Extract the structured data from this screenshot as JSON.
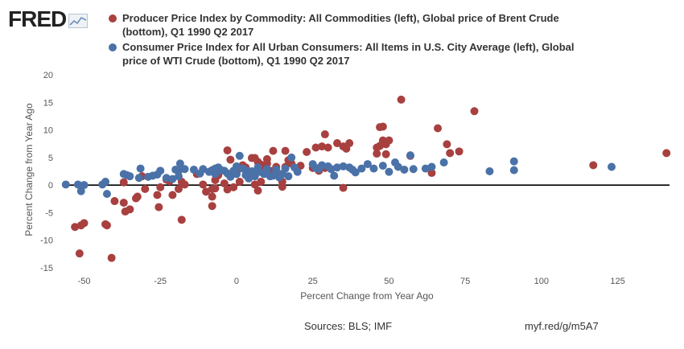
{
  "header": {
    "logo_text": "FRED",
    "logo_icon": "line-chart-icon"
  },
  "footer": {
    "sources": "Sources: BLS; IMF",
    "short_url": "myf.red/g/m5A7"
  },
  "chart_data": {
    "type": "scatter",
    "xlabel": "Percent Change from Year Ago",
    "ylabel": "Percent Change from Year Ago",
    "xlim": [
      -57,
      142
    ],
    "ylim": [
      -15,
      20
    ],
    "xticks": [
      -50,
      -25,
      0,
      25,
      50,
      75,
      100,
      125
    ],
    "yticks": [
      -15,
      -10,
      -5,
      0,
      5,
      10,
      15,
      20
    ],
    "grid": false,
    "zero_line": true,
    "legend_position": "top",
    "series": [
      {
        "name": "Producer Price Index by Commodity: All Commodities (left), Global price of Brent Crude (bottom), Q1 1990 Q2 2017",
        "color": "#a84040",
        "points": [
          [
            -53,
            -7.6
          ],
          [
            -51.5,
            -12.4
          ],
          [
            -51,
            -7.3
          ],
          [
            -50,
            -6.9
          ],
          [
            -43,
            -7.1
          ],
          [
            -42.5,
            -7.3
          ],
          [
            -41,
            -13.2
          ],
          [
            -40,
            -2.9
          ],
          [
            -37,
            0.5
          ],
          [
            -37,
            -3.2
          ],
          [
            -36.5,
            -4.8
          ],
          [
            -35,
            -4.4
          ],
          [
            -33,
            -2.4
          ],
          [
            -32.5,
            -2.1
          ],
          [
            -31,
            1.6
          ],
          [
            -30,
            -0.7
          ],
          [
            -26,
            -1.8
          ],
          [
            -25.5,
            -4.0
          ],
          [
            -25,
            -0.4
          ],
          [
            -23,
            1.0
          ],
          [
            -22,
            0.7
          ],
          [
            -21,
            -1.8
          ],
          [
            -19,
            -0.7
          ],
          [
            -18,
            -6.3
          ],
          [
            -18,
            0.6
          ],
          [
            -17,
            0.1
          ],
          [
            -13,
            2.0
          ],
          [
            -11,
            0.1
          ],
          [
            -10,
            -1.2
          ],
          [
            -8,
            -0.7
          ],
          [
            -8,
            -2.1
          ],
          [
            -8,
            -3.8
          ],
          [
            -7,
            0.9
          ],
          [
            -7,
            -0.6
          ],
          [
            -6,
            1.8
          ],
          [
            -4,
            0.3
          ],
          [
            -3,
            6.3
          ],
          [
            -3,
            -0.8
          ],
          [
            -2,
            4.6
          ],
          [
            -1,
            -0.4
          ],
          [
            0,
            2.3
          ],
          [
            1,
            0.6
          ],
          [
            2,
            3.6
          ],
          [
            3,
            3.2
          ],
          [
            4,
            1.7
          ],
          [
            5,
            4.9
          ],
          [
            6,
            4.9
          ],
          [
            6,
            0.1
          ],
          [
            7,
            -1.0
          ],
          [
            7,
            4.2
          ],
          [
            8,
            0.6
          ],
          [
            8,
            3.7
          ],
          [
            9,
            2.6
          ],
          [
            10,
            4.7
          ],
          [
            10,
            3.9
          ],
          [
            11,
            2.6
          ],
          [
            12,
            6.2
          ],
          [
            12,
            1.8
          ],
          [
            13,
            3.3
          ],
          [
            14,
            2.0
          ],
          [
            15,
            0.6
          ],
          [
            15,
            -0.3
          ],
          [
            16,
            6.2
          ],
          [
            16,
            3.3
          ],
          [
            17,
            4.5
          ],
          [
            18,
            3.9
          ],
          [
            21,
            3.5
          ],
          [
            23,
            6.0
          ],
          [
            25,
            3.1
          ],
          [
            26,
            6.8
          ],
          [
            27,
            2.6
          ],
          [
            28,
            7.0
          ],
          [
            29,
            9.2
          ],
          [
            29,
            3.1
          ],
          [
            30,
            6.8
          ],
          [
            33,
            7.6
          ],
          [
            35,
            -0.5
          ],
          [
            35,
            7.0
          ],
          [
            36,
            6.6
          ],
          [
            37,
            7.6
          ],
          [
            46,
            6.8
          ],
          [
            46,
            5.7
          ],
          [
            47,
            10.5
          ],
          [
            47,
            7.1
          ],
          [
            48,
            10.6
          ],
          [
            48,
            8.1
          ],
          [
            49,
            5.6
          ],
          [
            49,
            7.4
          ],
          [
            50,
            8.1
          ],
          [
            54,
            15.5
          ],
          [
            57,
            5.3
          ],
          [
            64,
            2.2
          ],
          [
            66,
            10.3
          ],
          [
            69,
            7.4
          ],
          [
            70,
            5.8
          ],
          [
            73,
            6.1
          ],
          [
            78,
            13.4
          ],
          [
            117,
            3.6
          ],
          [
            141,
            5.8
          ]
        ]
      },
      {
        "name": "Consumer Price Index for All Urban Consumers: All Items in U.S. City Average (left), Global price of WTI Crude (bottom), Q1 1990 Q2 2017",
        "color": "#4a72a8",
        "points": [
          [
            -56,
            0.1
          ],
          [
            -52,
            0.1
          ],
          [
            -51,
            -1.1
          ],
          [
            -50,
            0.0
          ],
          [
            -44,
            0.1
          ],
          [
            -43,
            0.6
          ],
          [
            -42.5,
            -1.6
          ],
          [
            -37,
            2.0
          ],
          [
            -36,
            1.8
          ],
          [
            -35,
            1.6
          ],
          [
            -32,
            1.3
          ],
          [
            -31.5,
            3.0
          ],
          [
            -29,
            1.5
          ],
          [
            -27.5,
            1.7
          ],
          [
            -26,
            1.9
          ],
          [
            -25,
            2.6
          ],
          [
            -23,
            1.3
          ],
          [
            -21,
            1.1
          ],
          [
            -20,
            2.8
          ],
          [
            -19,
            1.6
          ],
          [
            -19,
            2.6
          ],
          [
            -18.5,
            3.9
          ],
          [
            -17,
            2.9
          ],
          [
            -14,
            2.8
          ],
          [
            -12,
            2.1
          ],
          [
            -11,
            2.9
          ],
          [
            -9,
            2.4
          ],
          [
            -8,
            2.7
          ],
          [
            -7,
            2.0
          ],
          [
            -7,
            3.0
          ],
          [
            -6,
            3.2
          ],
          [
            -5,
            2.7
          ],
          [
            -4,
            2.6
          ],
          [
            -3,
            2.1
          ],
          [
            -2,
            1.5
          ],
          [
            -1,
            2.6
          ],
          [
            0,
            3.4
          ],
          [
            0,
            2.0
          ],
          [
            1,
            5.3
          ],
          [
            2,
            3.0
          ],
          [
            3,
            1.8
          ],
          [
            3.5,
            2.6
          ],
          [
            4,
            1.2
          ],
          [
            5,
            2.5
          ],
          [
            6,
            1.6
          ],
          [
            7,
            3.2
          ],
          [
            7.5,
            2.4
          ],
          [
            9,
            2.0
          ],
          [
            10,
            2.9
          ],
          [
            11,
            1.6
          ],
          [
            12,
            1.7
          ],
          [
            13,
            2.8
          ],
          [
            14,
            1.4
          ],
          [
            15,
            2.0
          ],
          [
            16,
            3.0
          ],
          [
            17,
            1.6
          ],
          [
            18,
            5.0
          ],
          [
            19,
            3.2
          ],
          [
            20,
            2.4
          ],
          [
            25,
            3.8
          ],
          [
            26,
            3.1
          ],
          [
            27,
            2.9
          ],
          [
            28,
            3.6
          ],
          [
            30,
            3.4
          ],
          [
            31,
            2.9
          ],
          [
            32,
            1.7
          ],
          [
            33,
            3.2
          ],
          [
            35,
            3.4
          ],
          [
            37,
            3.2
          ],
          [
            38,
            2.8
          ],
          [
            39,
            2.3
          ],
          [
            41,
            3.0
          ],
          [
            43,
            3.8
          ],
          [
            45,
            3.0
          ],
          [
            48,
            3.5
          ],
          [
            50,
            2.4
          ],
          [
            52,
            4.1
          ],
          [
            53,
            3.3
          ],
          [
            55,
            2.8
          ],
          [
            57,
            5.4
          ],
          [
            58,
            2.9
          ],
          [
            62,
            3.0
          ],
          [
            64,
            3.3
          ],
          [
            68,
            4.1
          ],
          [
            83,
            2.5
          ],
          [
            91,
            4.3
          ],
          [
            91,
            2.7
          ],
          [
            123,
            3.3
          ]
        ]
      }
    ]
  }
}
